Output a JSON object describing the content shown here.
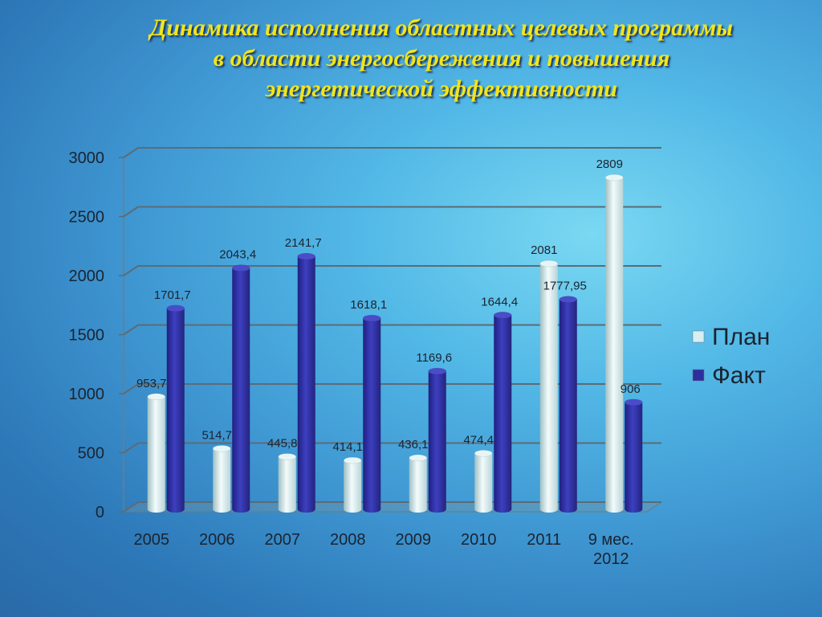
{
  "title_lines": [
    "Динамика исполнения областных целевых программы",
    "в области энергосбережения и повышения",
    "энергетической эффективности"
  ],
  "chart_data": {
    "type": "bar",
    "categories": [
      "2005",
      "2006",
      "2007",
      "2008",
      "2009",
      "2010",
      "2011",
      "9 мес. 2012"
    ],
    "series": [
      {
        "name": "План",
        "values": [
          953.7,
          514.7,
          445.8,
          414.1,
          436.1,
          474.4,
          2081,
          2809
        ],
        "labels": [
          "953,7",
          "514,7",
          "445,8",
          "414,1",
          "436,1",
          "474,4",
          "2081",
          "2809"
        ],
        "color": "#d8eef0"
      },
      {
        "name": "Факт",
        "values": [
          1701.7,
          2043.4,
          2141.7,
          1618.1,
          1169.6,
          1644.4,
          1777.95,
          906
        ],
        "labels": [
          "1701,7",
          "2043,4",
          "2141,7",
          "1618,1",
          "1169,6",
          "1644,4",
          "1777,95",
          "906"
        ],
        "color": "#2e2f9e"
      }
    ],
    "ylim": [
      0,
      3000
    ],
    "yticks": [
      "0",
      "500",
      "1000",
      "1500",
      "2000",
      "2500",
      "3000"
    ],
    "grid": true,
    "legend_position": "right"
  }
}
